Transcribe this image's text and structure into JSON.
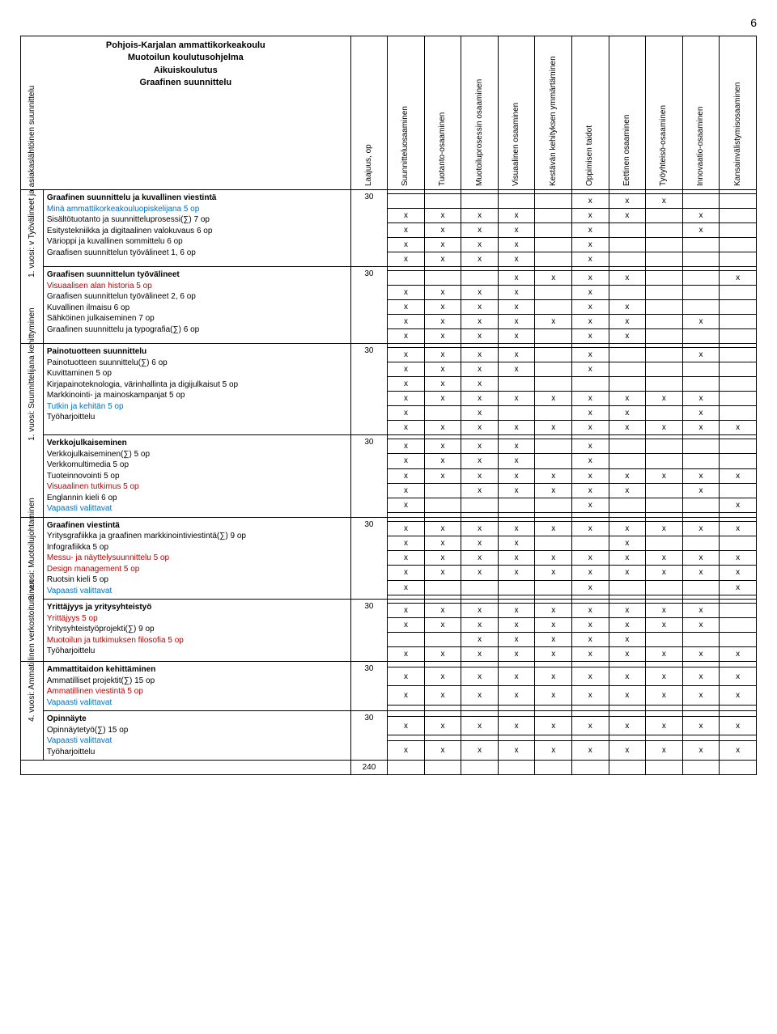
{
  "page_number": "6",
  "header": {
    "l1": "Pohjois-Karjalan ammattikorkeakoulu",
    "l2": "Muotoilun koulutusohjelma",
    "l3": "Aikuiskoulutus",
    "l4": "Graafinen suunnittelu"
  },
  "columns": [
    "Laajuus, op",
    "Suunnitteluosaaminen",
    "Tuotanto-osaaminen",
    "Muotoiluprosessin osaaminen",
    "Visuaalinen osaaminen",
    "Kestävän kehityksen ymmärtäminen",
    "Oppimisen taidot",
    "Eettinen osaaminen",
    "Työyhteisö-osaaminen",
    "Innovaatio-osaaminen",
    "Kansainvälistymisosaaminen"
  ],
  "sidebars": [
    {
      "label": "1. vuosi: v Työvälineet ja asiakaslähtöinen suunnittelu",
      "rowspan": 2
    },
    {
      "label": "1. vuosi: Suunnittelijana kehittyminen",
      "rowspan": 2
    },
    {
      "label": "3. vuosi: Muotoilujohtaminen",
      "rowspan": 2
    },
    {
      "label": "4. vuosi: Ammatillinen verkostoituminen",
      "rowspan": 2
    }
  ],
  "total": "240",
  "blocks": [
    {
      "laajuus": "30",
      "courses": [
        {
          "t": "Graafinen suunnittelu ja kuvallinen viestintä",
          "cls": "bold",
          "m": [
            "",
            "",
            "",
            "",
            "",
            "",
            "",
            "",
            "",
            ""
          ]
        },
        {
          "t": "Minä ammattikorkeakouluopiskelijana 5 op",
          "cls": "blue",
          "m": [
            "",
            "",
            "",
            "",
            "",
            "x",
            "x",
            "x",
            "",
            ""
          ]
        },
        {
          "t": "Sisältötuotanto ja suunnitteluprosessi(∑) 7 op",
          "cls": "",
          "m": [
            "x",
            "x",
            "x",
            "x",
            "",
            "x",
            "x",
            "",
            "x",
            ""
          ]
        },
        {
          "t": "Esitystekniikka ja digitaalinen valokuvaus 6 op",
          "cls": "",
          "m": [
            "x",
            "x",
            "x",
            "x",
            "",
            "x",
            "",
            "",
            "x",
            ""
          ]
        },
        {
          "t": "Värioppi ja kuvallinen sommittelu 6 op",
          "cls": "",
          "m": [
            "x",
            "x",
            "x",
            "x",
            "",
            "x",
            "",
            "",
            "",
            ""
          ]
        },
        {
          "t": "Graafisen suunnittelun työvälineet 1, 6 op",
          "cls": "",
          "m": [
            "x",
            "x",
            "x",
            "x",
            "",
            "x",
            "",
            "",
            "",
            ""
          ]
        }
      ]
    },
    {
      "laajuus": "30",
      "courses": [
        {
          "t": "Graafisen suunnittelun työvälineet",
          "cls": "bold",
          "m": [
            "",
            "",
            "",
            "",
            "",
            "",
            "",
            "",
            "",
            ""
          ]
        },
        {
          "t": "Visuaalisen alan historia 5 op",
          "cls": "red",
          "m": [
            "",
            "",
            "",
            "x",
            "x",
            "x",
            "x",
            "",
            "",
            "x"
          ]
        },
        {
          "t": "Graafisen suunnittelun työvälineet 2, 6 op",
          "cls": "",
          "m": [
            "x",
            "x",
            "x",
            "x",
            "",
            "x",
            "",
            "",
            "",
            ""
          ]
        },
        {
          "t": "Kuvallinen ilmaisu 6 op",
          "cls": "",
          "m": [
            "x",
            "x",
            "x",
            "x",
            "",
            "x",
            "x",
            "",
            "",
            ""
          ]
        },
        {
          "t": "Sähköinen julkaiseminen 7 op",
          "cls": "",
          "m": [
            "x",
            "x",
            "x",
            "x",
            "x",
            "x",
            "x",
            "",
            "x",
            ""
          ]
        },
        {
          "t": "Graafinen suunnittelu ja typografia(∑) 6 op",
          "cls": "",
          "m": [
            "x",
            "x",
            "x",
            "x",
            "",
            "x",
            "x",
            "",
            "",
            ""
          ]
        }
      ]
    },
    {
      "laajuus": "30",
      "courses": [
        {
          "t": "Painotuotteen suunnittelu",
          "cls": "bold",
          "m": [
            "",
            "",
            "",
            "",
            "",
            "",
            "",
            "",
            "",
            ""
          ]
        },
        {
          "t": "Painotuotteen suunnittelu(∑) 6 op",
          "cls": "",
          "m": [
            "x",
            "x",
            "x",
            "x",
            "",
            "x",
            "",
            "",
            "x",
            ""
          ]
        },
        {
          "t": "Kuvittaminen 5 op",
          "cls": "",
          "m": [
            "x",
            "x",
            "x",
            "x",
            "",
            "x",
            "",
            "",
            "",
            ""
          ]
        },
        {
          "t": "Kirjapainoteknologia, värinhallinta ja digijulkaisut 5 op",
          "cls": "",
          "m": [
            "x",
            "x",
            "x",
            "",
            "",
            "",
            "",
            "",
            "",
            ""
          ]
        },
        {
          "t": "Markkinointi- ja mainoskampanjat 5 op",
          "cls": "",
          "m": [
            "x",
            "x",
            "x",
            "x",
            "x",
            "x",
            "x",
            "x",
            "x",
            ""
          ]
        },
        {
          "t": "Tutkin ja kehitän 5 op",
          "cls": "blue",
          "m": [
            "x",
            "",
            "x",
            "",
            "",
            "x",
            "x",
            "",
            "x",
            ""
          ]
        },
        {
          "t": "Työharjoittelu",
          "cls": "",
          "m": [
            "x",
            "x",
            "x",
            "x",
            "x",
            "x",
            "x",
            "x",
            "x",
            "x"
          ]
        }
      ]
    },
    {
      "laajuus": "30",
      "courses": [
        {
          "t": "Verkkojulkaiseminen",
          "cls": "bold",
          "m": [
            "",
            "",
            "",
            "",
            "",
            "",
            "",
            "",
            "",
            ""
          ]
        },
        {
          "t": "Verkkojulkaiseminen(∑) 5 op",
          "cls": "",
          "m": [
            "x",
            "x",
            "x",
            "x",
            "",
            "x",
            "",
            "",
            "",
            ""
          ]
        },
        {
          "t": "Verkkomultimedia 5 op",
          "cls": "",
          "m": [
            "x",
            "x",
            "x",
            "x",
            "",
            "x",
            "",
            "",
            "",
            ""
          ]
        },
        {
          "t": "Tuoteinnovointi 5 op",
          "cls": "",
          "m": [
            "x",
            "x",
            "x",
            "x",
            "x",
            "x",
            "x",
            "x",
            "x",
            "x"
          ]
        },
        {
          "t": "Visuaalinen tutkimus 5 op",
          "cls": "red",
          "m": [
            "x",
            "",
            "x",
            "x",
            "x",
            "x",
            "x",
            "",
            "x",
            ""
          ]
        },
        {
          "t": "Englannin kieli 6 op",
          "cls": "",
          "m": [
            "x",
            "",
            "",
            "",
            "",
            "x",
            "",
            "",
            "",
            "x"
          ]
        },
        {
          "t": "Vapaasti valittavat",
          "cls": "blue",
          "m": [
            "",
            "",
            "",
            "",
            "",
            "",
            "",
            "",
            "",
            ""
          ]
        }
      ]
    },
    {
      "laajuus": "30",
      "courses": [
        {
          "t": "Graafinen viestintä",
          "cls": "bold",
          "m": [
            "",
            "",
            "",
            "",
            "",
            "",
            "",
            "",
            "",
            ""
          ]
        },
        {
          "t": "Yritysgrafiikka ja graafinen markkinointiviestintä(∑) 9 op",
          "cls": "",
          "m": [
            "x",
            "x",
            "x",
            "x",
            "x",
            "x",
            "x",
            "x",
            "x",
            "x"
          ]
        },
        {
          "t": "Infografiikka 5 op",
          "cls": "",
          "m": [
            "x",
            "x",
            "x",
            "x",
            "",
            "",
            "x",
            "",
            "",
            ""
          ]
        },
        {
          "t": "Messu- ja näyttelysuunnittelu 5 op",
          "cls": "red",
          "m": [
            "x",
            "x",
            "x",
            "x",
            "x",
            "x",
            "x",
            "x",
            "x",
            "x"
          ]
        },
        {
          "t": "Design management 5 op",
          "cls": "red",
          "m": [
            "x",
            "x",
            "x",
            "x",
            "x",
            "x",
            "x",
            "x",
            "x",
            "x"
          ]
        },
        {
          "t": "Ruotsin kieli 5 op",
          "cls": "",
          "m": [
            "x",
            "",
            "",
            "",
            "",
            "x",
            "",
            "",
            "",
            "x"
          ]
        },
        {
          "t": "Vapaasti valittavat",
          "cls": "blue",
          "m": [
            "",
            "",
            "",
            "",
            "",
            "",
            "",
            "",
            "",
            ""
          ]
        }
      ]
    },
    {
      "laajuus": "30",
      "courses": [
        {
          "t": "Yrittäjyys ja yritysyhteistyö",
          "cls": "bold",
          "m": [
            "",
            "",
            "",
            "",
            "",
            "",
            "",
            "",
            "",
            ""
          ]
        },
        {
          "t": "Yrittäjyys 5 op",
          "cls": "red",
          "m": [
            "x",
            "x",
            "x",
            "x",
            "x",
            "x",
            "x",
            "x",
            "x",
            ""
          ]
        },
        {
          "t": "Yritysyhteistyöprojekti(∑) 9 op",
          "cls": "",
          "m": [
            "x",
            "x",
            "x",
            "x",
            "x",
            "x",
            "x",
            "x",
            "x",
            ""
          ]
        },
        {
          "t": "Muotoilun ja tutkimuksen filosofia 5 op",
          "cls": "red",
          "m": [
            "",
            "",
            "x",
            "x",
            "x",
            "x",
            "x",
            "",
            "",
            ""
          ]
        },
        {
          "t": "Työharjoittelu",
          "cls": "",
          "m": [
            "x",
            "x",
            "x",
            "x",
            "x",
            "x",
            "x",
            "x",
            "x",
            "x"
          ]
        }
      ]
    },
    {
      "laajuus": "30",
      "courses": [
        {
          "t": "Ammattitaidon kehittäminen",
          "cls": "bold",
          "m": [
            "",
            "",
            "",
            "",
            "",
            "",
            "",
            "",
            "",
            ""
          ]
        },
        {
          "t": "Ammatilliset projektit(∑) 15 op",
          "cls": "",
          "m": [
            "x",
            "x",
            "x",
            "x",
            "x",
            "x",
            "x",
            "x",
            "x",
            "x"
          ]
        },
        {
          "t": "Ammatillinen viestintä 5 op",
          "cls": "red",
          "m": [
            "x",
            "x",
            "x",
            "x",
            "x",
            "x",
            "x",
            "x",
            "x",
            "x"
          ]
        },
        {
          "t": "Vapaasti valittavat",
          "cls": "blue",
          "m": [
            "",
            "",
            "",
            "",
            "",
            "",
            "",
            "",
            "",
            ""
          ]
        }
      ]
    },
    {
      "laajuus": "30",
      "courses": [
        {
          "t": "Opinnäyte",
          "cls": "bold",
          "m": [
            "",
            "",
            "",
            "",
            "",
            "",
            "",
            "",
            "",
            ""
          ]
        },
        {
          "t": "Opinnäytetyö(∑) 15 op",
          "cls": "",
          "m": [
            "x",
            "x",
            "x",
            "x",
            "x",
            "x",
            "x",
            "x",
            "x",
            "x"
          ]
        },
        {
          "t": "Vapaasti valittavat",
          "cls": "blue",
          "m": [
            "",
            "",
            "",
            "",
            "",
            "",
            "",
            "",
            "",
            ""
          ]
        },
        {
          "t": "Työharjoittelu",
          "cls": "",
          "m": [
            "x",
            "x",
            "x",
            "x",
            "x",
            "x",
            "x",
            "x",
            "x",
            "x"
          ]
        }
      ]
    }
  ]
}
